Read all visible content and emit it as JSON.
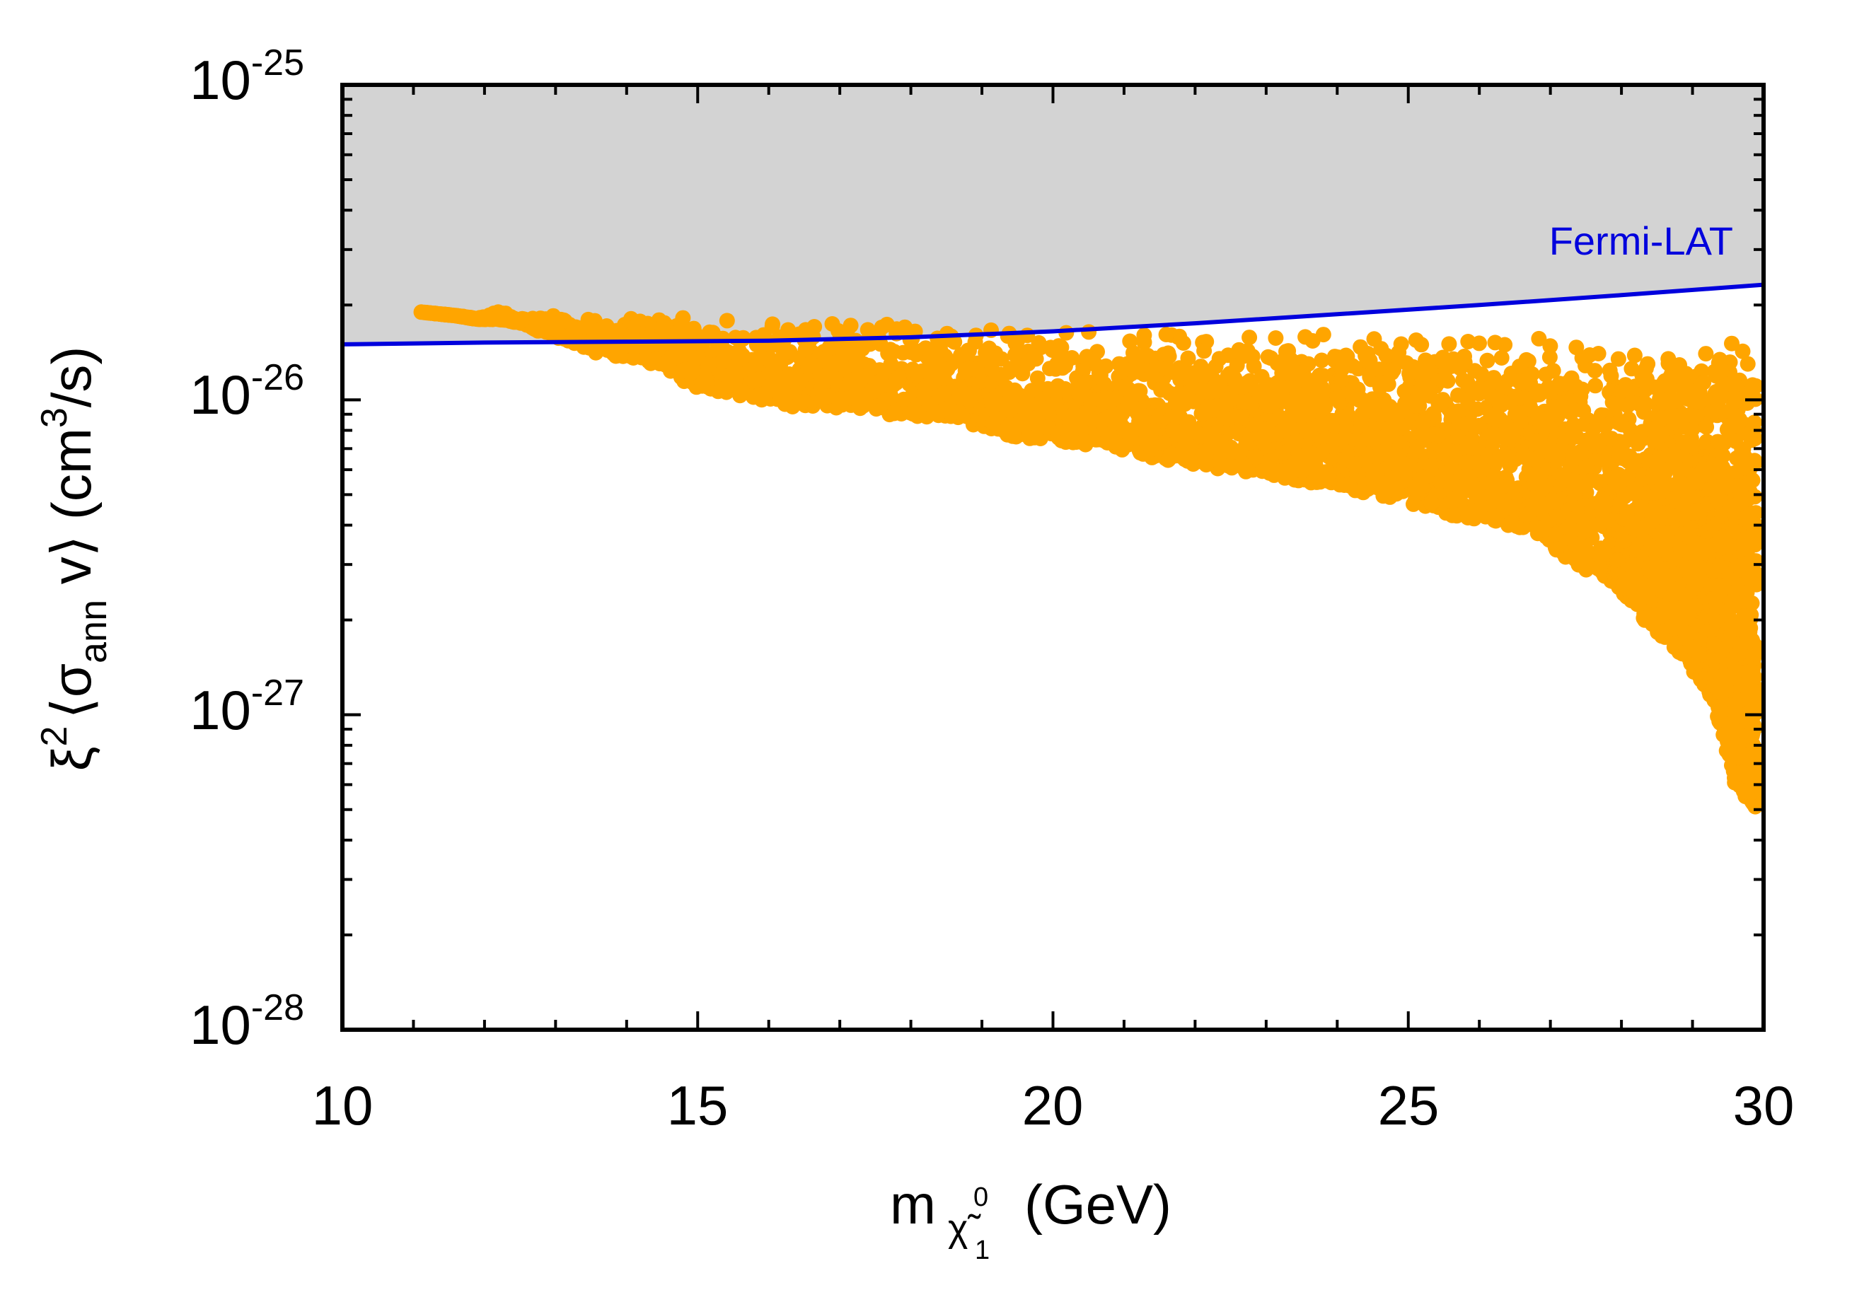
{
  "chart_data": {
    "type": "scatter",
    "title": "",
    "xlabel": {
      "main": "m",
      "subscript": "χ̃",
      "subsub": "1",
      "supsub": "0",
      "unit": "(GeV)"
    },
    "ylabel": {
      "prefix": "ξ",
      "prefix_exp": "2",
      "open": "⟨σ",
      "sub": "ann",
      "mid": " v⟩ (cm",
      "exp": "3",
      "end": "/s)"
    },
    "xlim": [
      10,
      30
    ],
    "ylim": [
      1e-28,
      1e-25
    ],
    "yscale": "log",
    "x_ticks": [
      {
        "value": 10,
        "label": "10"
      },
      {
        "value": 15,
        "label": "15"
      },
      {
        "value": 20,
        "label": "20"
      },
      {
        "value": 25,
        "label": "25"
      },
      {
        "value": 30,
        "label": "30"
      }
    ],
    "y_ticks": [
      {
        "value": 1e-28,
        "base": "10",
        "exp": "-28"
      },
      {
        "value": 1e-27,
        "base": "10",
        "exp": "-27"
      },
      {
        "value": 1e-26,
        "base": "10",
        "exp": "-26"
      },
      {
        "value": 1e-25,
        "base": "10",
        "exp": "-25"
      }
    ],
    "colors": {
      "excluded_region": "#d3d3d3",
      "limit_line": "#0000dd",
      "points": "#ffa500",
      "axes": "#000000"
    },
    "series": [
      {
        "name": "Fermi-LAT",
        "kind": "line",
        "x": [
          10,
          12,
          14,
          16,
          18,
          20,
          22,
          24,
          26,
          28,
          30
        ],
        "y": [
          1.5e-26,
          1.52e-26,
          1.53e-26,
          1.54e-26,
          1.58e-26,
          1.65e-26,
          1.75e-26,
          1.87e-26,
          2e-26,
          2.15e-26,
          2.32e-26
        ]
      },
      {
        "name": "model points",
        "kind": "scatter",
        "x": [
          11.1,
          11.6,
          11.9,
          12.2,
          12.5,
          12.9,
          13.3,
          13.6,
          14.1,
          14.5,
          14.9,
          15.3,
          15.8,
          16.2,
          16.7,
          17.1,
          17.6,
          18.2,
          18.7,
          19.1,
          19.6,
          20.2,
          20.7,
          21.3,
          21.8,
          22.4,
          23.0,
          23.5,
          24.0,
          24.5,
          25.1,
          25.6,
          26.2,
          26.8,
          27.3,
          27.9,
          28.4,
          28.9,
          29.3,
          29.6,
          29.9
        ],
        "y_high": [
          1.9e-26,
          1.85e-26,
          1.82e-26,
          1.92e-26,
          1.82e-26,
          1.88e-26,
          1.8e-26,
          1.84e-26,
          1.86e-26,
          1.85e-26,
          1.83e-26,
          1.82e-26,
          1.8e-26,
          1.78e-26,
          1.78e-26,
          1.77e-26,
          1.77e-26,
          1.75e-26,
          1.75e-26,
          1.72e-26,
          1.72e-26,
          1.7e-26,
          1.7e-26,
          1.68e-26,
          1.68e-26,
          1.67e-26,
          1.67e-26,
          1.66e-26,
          1.65e-26,
          1.64e-26,
          1.63e-26,
          1.62e-26,
          1.62e-26,
          1.61e-26,
          1.6e-26,
          1.58e-26,
          1.57e-26,
          1.56e-26,
          1.55e-26,
          1.54e-26,
          1.53e-26
        ],
        "y_low": [
          1.9e-26,
          1.85e-26,
          1.8e-26,
          1.8e-26,
          1.75e-26,
          1.6e-26,
          1.5e-26,
          1.4e-26,
          1.35e-26,
          1.25e-26,
          1.1e-26,
          1.05e-26,
          1e-26,
          9.5e-27,
          9.5e-27,
          9.2e-27,
          9e-27,
          8.8e-27,
          8.6e-27,
          8e-27,
          7.5e-27,
          7.3e-27,
          7.1e-27,
          6.6e-27,
          6.3e-27,
          6e-27,
          5.8e-27,
          5.5e-27,
          5.3e-27,
          5e-27,
          4.6e-27,
          4.3e-27,
          4.1e-27,
          3.8e-27,
          3e-27,
          2.6e-27,
          1.9e-27,
          1.5e-27,
          1.1e-27,
          6e-28,
          5e-28
        ]
      }
    ],
    "legend": {
      "text": "Fermi-LAT",
      "placement": "top-right, above line"
    }
  }
}
